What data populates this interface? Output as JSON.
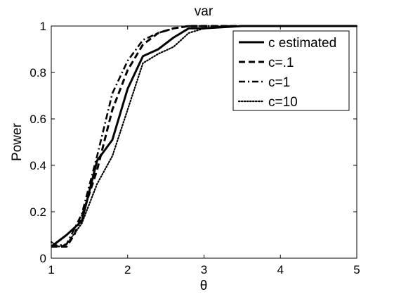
{
  "chart_data": {
    "type": "line",
    "title": "var",
    "xlabel": "θ",
    "ylabel": "Power",
    "xlim": [
      1,
      5
    ],
    "ylim": [
      0,
      1
    ],
    "xticks": [
      1,
      2,
      3,
      4,
      5
    ],
    "yticks": [
      0,
      0.2,
      0.4,
      0.6,
      0.8,
      1
    ],
    "xtick_labels": [
      "1",
      "2",
      "3",
      "4",
      "5"
    ],
    "ytick_labels": [
      "0",
      "0.2",
      "0.4",
      "0.6",
      "0.8",
      "1"
    ],
    "grid": false,
    "legend_position": "top-right",
    "series": [
      {
        "name": "c estimated",
        "style": "solid",
        "x": [
          1.0,
          1.2,
          1.4,
          1.6,
          1.8,
          2.0,
          2.2,
          2.4,
          2.6,
          2.8,
          3.0,
          3.5,
          4.0,
          4.5,
          5.0
        ],
        "y": [
          0.05,
          0.1,
          0.16,
          0.42,
          0.51,
          0.73,
          0.87,
          0.9,
          0.95,
          0.99,
          0.99,
          1.0,
          1.0,
          1.0,
          1.0
        ]
      },
      {
        "name": "c=.1",
        "style": "dashed",
        "x": [
          1.0,
          1.2,
          1.3,
          1.4,
          1.6,
          1.8,
          2.0,
          2.2,
          2.4,
          2.6,
          2.8,
          3.0,
          3.5,
          4.0,
          4.5,
          5.0
        ],
        "y": [
          0.05,
          0.05,
          0.1,
          0.18,
          0.38,
          0.64,
          0.81,
          0.92,
          0.97,
          0.99,
          1.0,
          1.0,
          1.0,
          1.0,
          1.0,
          1.0
        ]
      },
      {
        "name": "c=1",
        "style": "dashdot",
        "x": [
          1.0,
          1.2,
          1.4,
          1.6,
          1.8,
          2.0,
          2.2,
          2.4,
          2.6,
          2.8,
          3.0,
          3.5,
          4.0,
          4.5,
          5.0
        ],
        "y": [
          0.05,
          0.06,
          0.19,
          0.44,
          0.71,
          0.85,
          0.94,
          0.97,
          0.99,
          1.0,
          1.0,
          1.0,
          1.0,
          1.0,
          1.0
        ]
      },
      {
        "name": "c=10",
        "style": "dotted",
        "x": [
          1.0,
          1.1,
          1.2,
          1.4,
          1.6,
          1.8,
          2.0,
          2.2,
          2.4,
          2.6,
          2.8,
          3.0,
          3.5,
          4.0,
          4.5,
          5.0
        ],
        "y": [
          0.07,
          0.05,
          0.06,
          0.15,
          0.32,
          0.44,
          0.64,
          0.84,
          0.88,
          0.91,
          0.97,
          0.99,
          1.0,
          1.0,
          1.0,
          1.0
        ]
      }
    ]
  },
  "colors": {
    "line": "#000000",
    "background": "#ffffff",
    "axes_background": "#ffffff"
  }
}
